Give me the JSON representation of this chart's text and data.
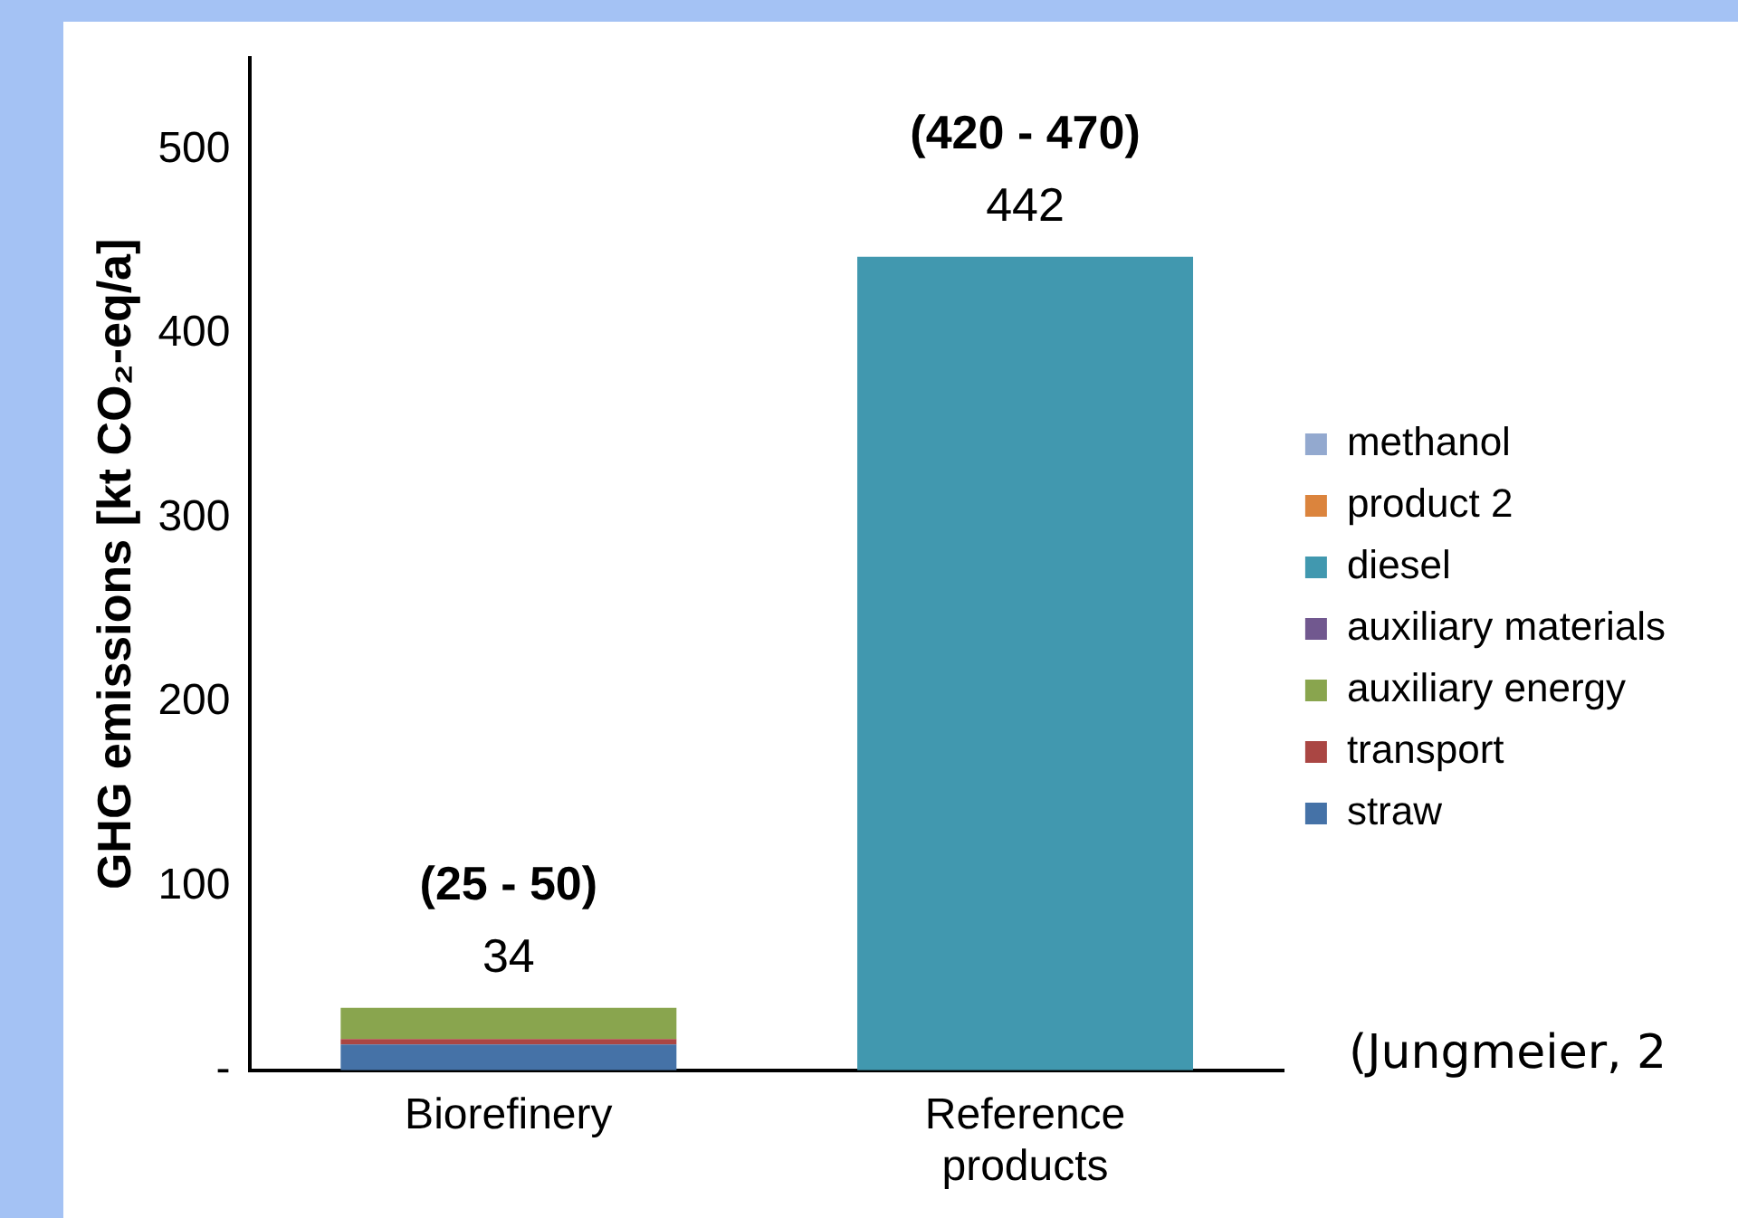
{
  "chart_data": {
    "type": "bar",
    "stacked": true,
    "ylabel": "GHG emissions [kt CO₂-eq/a]",
    "categories": [
      "Biorefinery",
      "Reference products"
    ],
    "series": [
      {
        "name": "straw",
        "color": "#4572a7",
        "values": [
          14,
          0
        ]
      },
      {
        "name": "transport",
        "color": "#aa4643",
        "values": [
          3,
          0
        ]
      },
      {
        "name": "auxiliary energy",
        "color": "#89a54e",
        "values": [
          17,
          0
        ]
      },
      {
        "name": "auxiliary materials",
        "color": "#71588f",
        "values": [
          0,
          0
        ]
      },
      {
        "name": "diesel",
        "color": "#4198af",
        "values": [
          0,
          442
        ]
      },
      {
        "name": "product 2",
        "color": "#db843d",
        "values": [
          0,
          0
        ]
      },
      {
        "name": "methanol",
        "color": "#93a9cf",
        "values": [
          0,
          0
        ]
      }
    ],
    "ylim": [
      0,
      550
    ],
    "yticks": [
      {
        "value": 0,
        "label": "-"
      },
      100,
      200,
      300,
      400,
      500
    ],
    "grid": false,
    "legend": "right",
    "totals": [
      "34",
      "442"
    ],
    "annotations": [
      "(25 - 50)",
      "(420 - 470)",
      "(Jungmeier, 2"
    ]
  }
}
